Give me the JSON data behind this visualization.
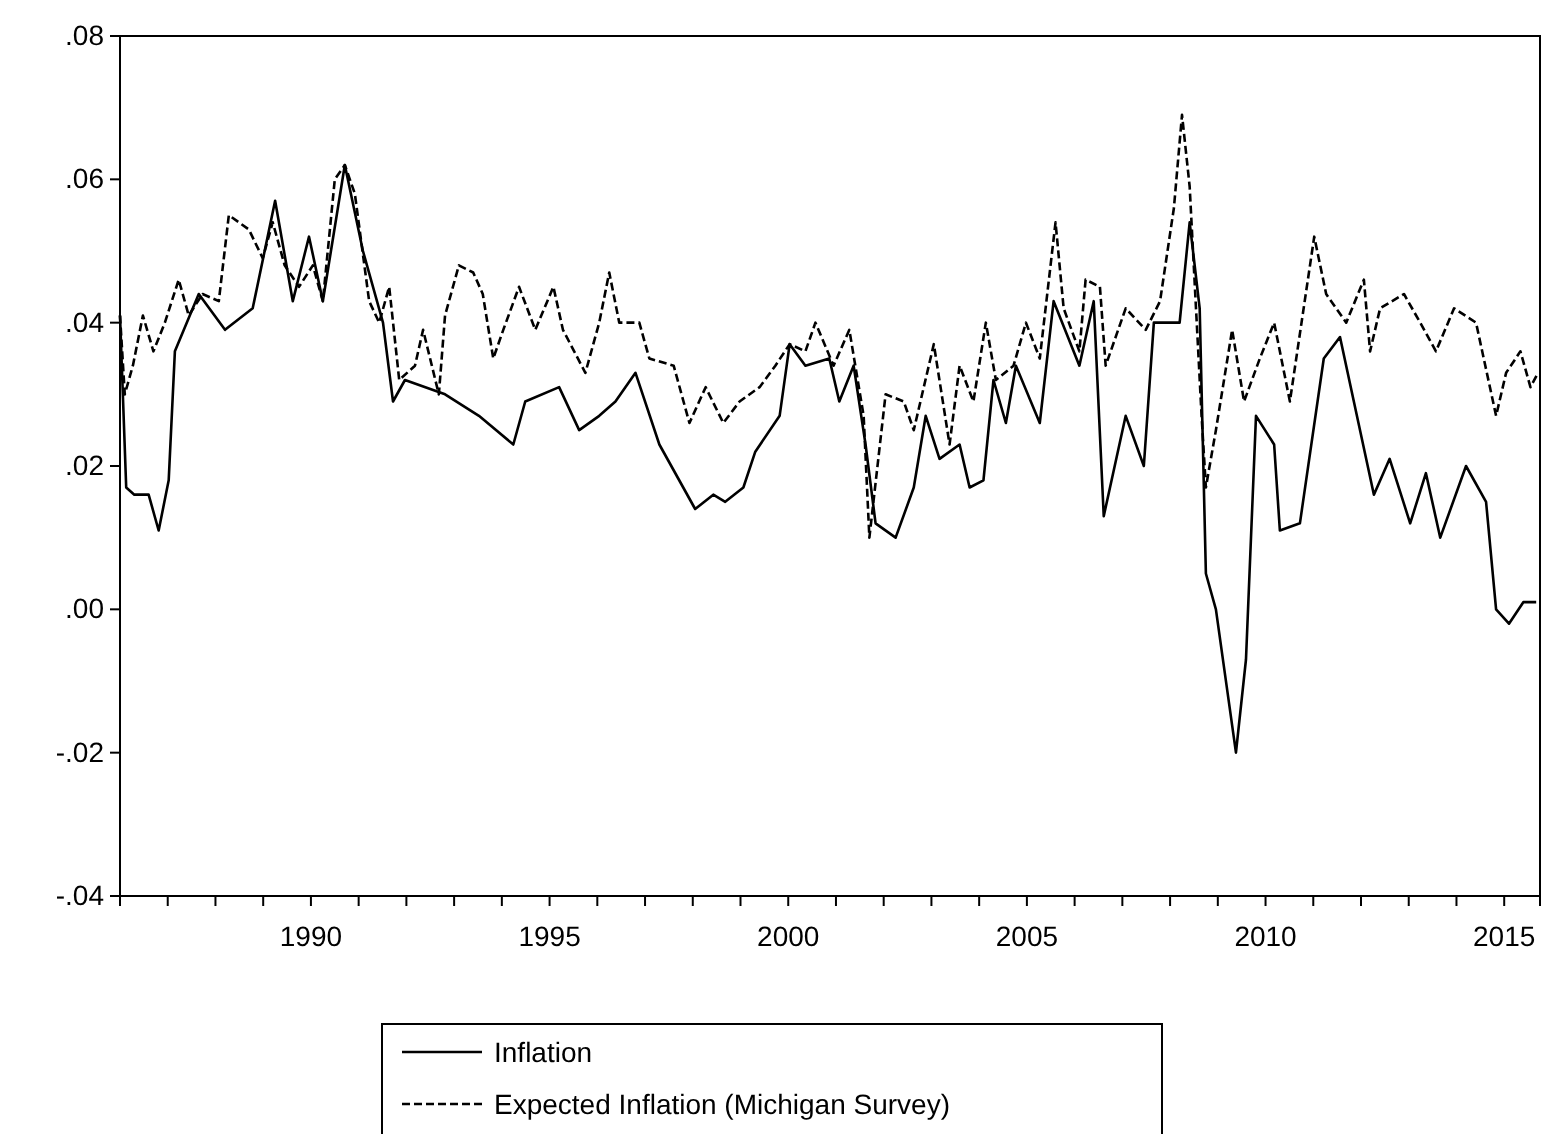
{
  "chart_data": {
    "type": "line",
    "xlim": [
      1986,
      2015.75
    ],
    "ylim": [
      -0.04,
      0.08
    ],
    "xticks": [
      {
        "value": 1986,
        "label": null
      },
      {
        "value": 1987,
        "label": null
      },
      {
        "value": 1988,
        "label": null
      },
      {
        "value": 1989,
        "label": null
      },
      1990,
      {
        "value": 1991,
        "label": null
      },
      {
        "value": 1992,
        "label": null
      },
      {
        "value": 1993,
        "label": null
      },
      {
        "value": 1994,
        "label": null
      },
      1995,
      {
        "value": 1996,
        "label": null
      },
      {
        "value": 1997,
        "label": null
      },
      {
        "value": 1998,
        "label": null
      },
      {
        "value": 1999,
        "label": null
      },
      2000,
      {
        "value": 2001,
        "label": null
      },
      {
        "value": 2002,
        "label": null
      },
      {
        "value": 2003,
        "label": null
      },
      {
        "value": 2004,
        "label": null
      },
      2005,
      {
        "value": 2006,
        "label": null
      },
      {
        "value": 2007,
        "label": null
      },
      {
        "value": 2008,
        "label": null
      },
      {
        "value": 2009,
        "label": null
      },
      2010,
      {
        "value": 2011,
        "label": null
      },
      {
        "value": 2012,
        "label": null
      },
      {
        "value": 2013,
        "label": null
      },
      {
        "value": 2014,
        "label": null
      },
      2015
    ],
    "yticks": [
      {
        "value": -0.04,
        "label": "-.04"
      },
      {
        "value": -0.02,
        "label": "-.02"
      },
      {
        "value": 0,
        "label": ".00"
      },
      {
        "value": 0.02,
        "label": ".02"
      },
      {
        "value": 0.04,
        "label": ".04"
      },
      {
        "value": 0.06,
        "label": ".06"
      },
      {
        "value": 0.08,
        "label": ".08"
      }
    ],
    "grid": false,
    "legend": "bottom",
    "series": [
      {
        "name": "Inflation",
        "color": "#000000",
        "line_style": "solid",
        "x": [
          1986.0,
          1986.13,
          1986.3,
          1986.6,
          1986.81,
          1987.02,
          1987.15,
          1987.65,
          1988.2,
          1988.78,
          1989.25,
          1989.62,
          1989.96,
          1990.25,
          1990.71,
          1991.09,
          1991.51,
          1991.72,
          1991.97,
          1992.81,
          1993.52,
          1994.24,
          1994.49,
          1995.2,
          1995.62,
          1996.04,
          1996.38,
          1996.8,
          1997.3,
          1998.05,
          1998.43,
          1998.68,
          1999.06,
          1999.31,
          1999.82,
          2000.03,
          2000.36,
          2000.86,
          2001.07,
          2001.37,
          2001.62,
          2001.83,
          2002.25,
          2002.63,
          2002.88,
          2003.17,
          2003.59,
          2003.8,
          2004.09,
          2004.3,
          2004.56,
          2004.77,
          2005.27,
          2005.56,
          2006.1,
          2006.4,
          2006.61,
          2007.07,
          2007.45,
          2007.66,
          2008.2,
          2008.41,
          2008.62,
          2008.75,
          2008.96,
          2009.38,
          2009.59,
          2009.8,
          2010.18,
          2010.3,
          2010.72,
          2011.22,
          2011.56,
          2011.85,
          2012.27,
          2012.6,
          2013.03,
          2013.36,
          2013.66,
          2014.2,
          2014.62,
          2014.83,
          2015.1,
          2015.4,
          2015.67
        ],
        "values": [
          0.041,
          0.017,
          0.016,
          0.016,
          0.011,
          0.018,
          0.036,
          0.044,
          0.039,
          0.042,
          0.057,
          0.043,
          0.052,
          0.043,
          0.062,
          0.05,
          0.04,
          0.029,
          0.032,
          0.03,
          0.027,
          0.023,
          0.029,
          0.031,
          0.025,
          0.027,
          0.029,
          0.033,
          0.023,
          0.014,
          0.016,
          0.015,
          0.017,
          0.022,
          0.027,
          0.037,
          0.034,
          0.035,
          0.029,
          0.034,
          0.023,
          0.012,
          0.01,
          0.017,
          0.027,
          0.021,
          0.023,
          0.017,
          0.018,
          0.032,
          0.026,
          0.034,
          0.026,
          0.043,
          0.034,
          0.043,
          0.013,
          0.027,
          0.02,
          0.04,
          0.04,
          0.054,
          0.042,
          0.005,
          0.0,
          -0.02,
          -0.007,
          0.027,
          0.023,
          0.011,
          0.012,
          0.035,
          0.038,
          0.029,
          0.016,
          0.021,
          0.012,
          0.019,
          0.01,
          0.02,
          0.015,
          0.0,
          -0.002,
          0.001,
          0.001
        ]
      },
      {
        "name": "Expected Inflation (Michigan Survey)",
        "color": "#000000",
        "line_style": "dashed",
        "x": [
          1986.0,
          1986.1,
          1986.27,
          1986.48,
          1986.7,
          1986.94,
          1987.23,
          1987.44,
          1987.73,
          1988.07,
          1988.28,
          1988.7,
          1988.99,
          1989.2,
          1989.45,
          1989.75,
          1990.04,
          1990.25,
          1990.5,
          1990.71,
          1990.92,
          1991.22,
          1991.43,
          1991.64,
          1991.85,
          1992.18,
          1992.35,
          1992.68,
          1992.81,
          1993.1,
          1993.4,
          1993.6,
          1993.82,
          1994.03,
          1994.36,
          1994.7,
          1995.08,
          1995.28,
          1995.75,
          1996.04,
          1996.25,
          1996.46,
          1996.88,
          1997.09,
          1997.6,
          1997.93,
          1998.27,
          1998.64,
          1998.98,
          1999.4,
          1999.73,
          2000.03,
          2000.36,
          2000.57,
          2000.95,
          2001.28,
          2001.58,
          2001.7,
          2002.04,
          2002.42,
          2002.63,
          2003.05,
          2003.38,
          2003.59,
          2003.88,
          2004.14,
          2004.35,
          2004.72,
          2004.98,
          2005.27,
          2005.6,
          2005.77,
          2006.1,
          2006.23,
          2006.53,
          2006.65,
          2007.07,
          2007.49,
          2007.79,
          2008.08,
          2008.25,
          2008.41,
          2008.66,
          2008.75,
          2008.96,
          2009.3,
          2009.55,
          2009.88,
          2010.18,
          2010.51,
          2011.02,
          2011.27,
          2011.69,
          2012.06,
          2012.19,
          2012.4,
          2012.9,
          2013.24,
          2013.57,
          2013.95,
          2014.41,
          2014.83,
          2015.04,
          2015.34,
          2015.55,
          2015.71
        ],
        "values": [
          0.041,
          0.03,
          0.034,
          0.041,
          0.036,
          0.04,
          0.046,
          0.041,
          0.044,
          0.043,
          0.055,
          0.053,
          0.049,
          0.054,
          0.048,
          0.045,
          0.048,
          0.043,
          0.06,
          0.062,
          0.058,
          0.043,
          0.04,
          0.045,
          0.032,
          0.034,
          0.039,
          0.03,
          0.041,
          0.048,
          0.047,
          0.044,
          0.035,
          0.039,
          0.045,
          0.039,
          0.045,
          0.039,
          0.033,
          0.04,
          0.047,
          0.04,
          0.04,
          0.035,
          0.034,
          0.026,
          0.031,
          0.026,
          0.029,
          0.031,
          0.034,
          0.037,
          0.036,
          0.04,
          0.034,
          0.039,
          0.027,
          0.01,
          0.03,
          0.029,
          0.025,
          0.037,
          0.023,
          0.034,
          0.029,
          0.04,
          0.032,
          0.034,
          0.04,
          0.035,
          0.054,
          0.042,
          0.036,
          0.046,
          0.045,
          0.034,
          0.042,
          0.039,
          0.043,
          0.056,
          0.069,
          0.059,
          0.027,
          0.017,
          0.025,
          0.039,
          0.029,
          0.035,
          0.04,
          0.029,
          0.052,
          0.044,
          0.04,
          0.046,
          0.036,
          0.042,
          0.044,
          0.04,
          0.036,
          0.042,
          0.04,
          0.027,
          0.033,
          0.036,
          0.031,
          0.033
        ]
      }
    ]
  }
}
